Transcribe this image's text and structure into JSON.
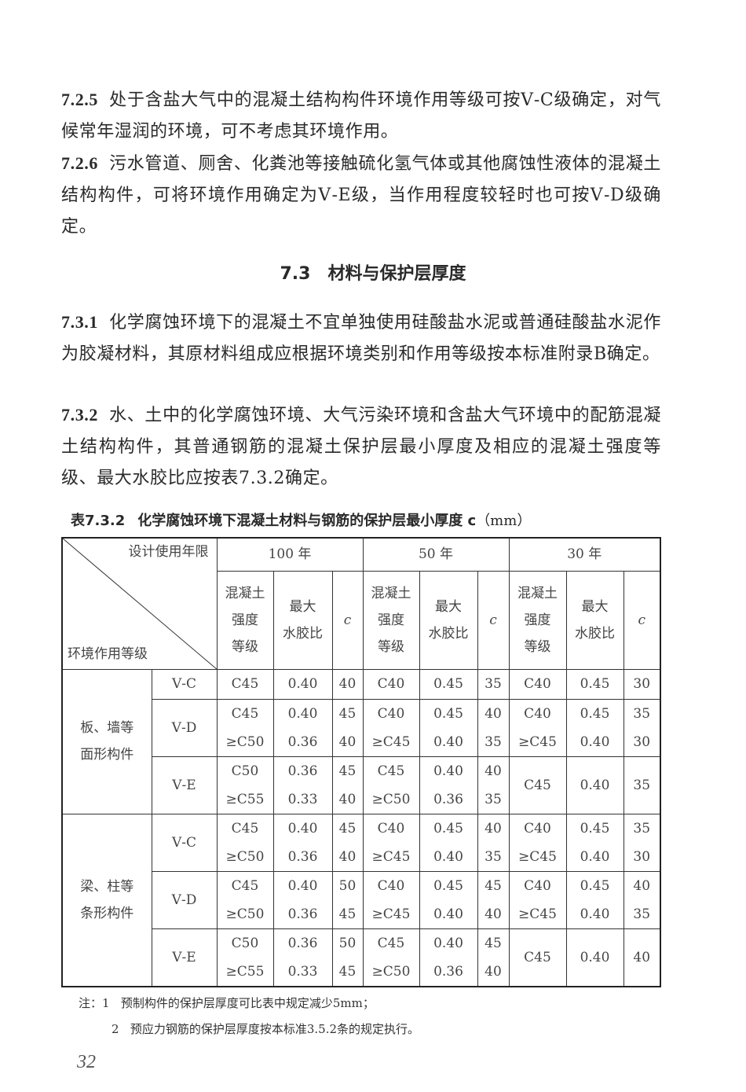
{
  "clauses": [
    {
      "num": "7.2.5",
      "text": "处于含盐大气中的混凝土结构构件环境作用等级可按Ⅴ-C级确定，对气候常年湿润的环境，可不考虑其环境作用。"
    },
    {
      "num": "7.2.6",
      "text": "污水管道、厕舍、化粪池等接触硫化氢气体或其他腐蚀性液体的混凝土结构构件，可将环境作用确定为Ⅴ-E级，当作用程度较轻时也可按Ⅴ-D级确定。"
    },
    {
      "num": "7.3.1",
      "text": "化学腐蚀环境下的混凝土不宜单独使用硅酸盐水泥或普通硅酸盐水泥作为胶凝材料，其原材料组成应根据环境类别和作用等级按本标准附录B确定。"
    },
    {
      "num": "7.3.2",
      "text": "水、土中的化学腐蚀环境、大气污染环境和含盐大气环境中的配筋混凝土结构构件，其普通钢筋的混凝土保护层最小厚度及相应的混凝土强度等级、最大水胶比应按表7.3.2确定。"
    }
  ],
  "section": {
    "num": "7.3",
    "title": "材料与保护层厚度"
  },
  "table": {
    "caption_num": "表7.3.2",
    "caption": "化学腐蚀环境下混凝土材料与钢筋的保护层最小厚度 c",
    "unit": "（mm）",
    "corner_top": "设计使用年限",
    "corner_bottom": "环境作用等级",
    "periods": [
      "100 年",
      "50 年",
      "30 年"
    ],
    "subheaders": {
      "grade": "混凝土强度等级",
      "wb": "最大水胶比",
      "c": "c"
    },
    "groups": [
      {
        "label": "板、墙等面形构件",
        "rows": [
          {
            "level": "Ⅴ-C",
            "cells": [
              {
                "g": [
                  "C45"
                ],
                "w": [
                  "0.40"
                ],
                "c": [
                  "40"
                ]
              },
              {
                "g": [
                  "C40"
                ],
                "w": [
                  "0.45"
                ],
                "c": [
                  "35"
                ]
              },
              {
                "g": [
                  "C40"
                ],
                "w": [
                  "0.45"
                ],
                "c": [
                  "30"
                ]
              }
            ]
          },
          {
            "level": "Ⅴ-D",
            "cells": [
              {
                "g": [
                  "C45",
                  "≥C50"
                ],
                "w": [
                  "0.40",
                  "0.36"
                ],
                "c": [
                  "45",
                  "40"
                ]
              },
              {
                "g": [
                  "C40",
                  "≥C45"
                ],
                "w": [
                  "0.45",
                  "0.40"
                ],
                "c": [
                  "40",
                  "35"
                ]
              },
              {
                "g": [
                  "C40",
                  "≥C45"
                ],
                "w": [
                  "0.45",
                  "0.40"
                ],
                "c": [
                  "35",
                  "30"
                ]
              }
            ]
          },
          {
            "level": "Ⅴ-E",
            "cells": [
              {
                "g": [
                  "C50",
                  "≥C55"
                ],
                "w": [
                  "0.36",
                  "0.33"
                ],
                "c": [
                  "45",
                  "40"
                ]
              },
              {
                "g": [
                  "C45",
                  "≥C50"
                ],
                "w": [
                  "0.40",
                  "0.36"
                ],
                "c": [
                  "40",
                  "35"
                ]
              },
              {
                "g": [
                  "C45"
                ],
                "w": [
                  "0.40"
                ],
                "c": [
                  "35"
                ]
              }
            ]
          }
        ]
      },
      {
        "label": "梁、柱等条形构件",
        "rows": [
          {
            "level": "Ⅴ-C",
            "cells": [
              {
                "g": [
                  "C45",
                  "≥C50"
                ],
                "w": [
                  "0.40",
                  "0.36"
                ],
                "c": [
                  "45",
                  "40"
                ]
              },
              {
                "g": [
                  "C40",
                  "≥C45"
                ],
                "w": [
                  "0.45",
                  "0.40"
                ],
                "c": [
                  "40",
                  "35"
                ]
              },
              {
                "g": [
                  "C40",
                  "≥C45"
                ],
                "w": [
                  "0.45",
                  "0.40"
                ],
                "c": [
                  "35",
                  "30"
                ]
              }
            ]
          },
          {
            "level": "Ⅴ-D",
            "cells": [
              {
                "g": [
                  "C45",
                  "≥C50"
                ],
                "w": [
                  "0.40",
                  "0.36"
                ],
                "c": [
                  "50",
                  "45"
                ]
              },
              {
                "g": [
                  "C40",
                  "≥C45"
                ],
                "w": [
                  "0.45",
                  "0.40"
                ],
                "c": [
                  "45",
                  "40"
                ]
              },
              {
                "g": [
                  "C40",
                  "≥C45"
                ],
                "w": [
                  "0.45",
                  "0.40"
                ],
                "c": [
                  "40",
                  "35"
                ]
              }
            ]
          },
          {
            "level": "Ⅴ-E",
            "cells": [
              {
                "g": [
                  "C50",
                  "≥C55"
                ],
                "w": [
                  "0.36",
                  "0.33"
                ],
                "c": [
                  "50",
                  "45"
                ]
              },
              {
                "g": [
                  "C45",
                  "≥C50"
                ],
                "w": [
                  "0.40",
                  "0.36"
                ],
                "c": [
                  "45",
                  "40"
                ]
              },
              {
                "g": [
                  "C45"
                ],
                "w": [
                  "0.40"
                ],
                "c": [
                  "40"
                ]
              }
            ]
          }
        ]
      }
    ]
  },
  "notes": {
    "prefix": "注：1",
    "n1": "预制构件的保护层厚度可比表中规定减少5mm；",
    "n2_num": "2",
    "n2": "预应力钢筋的保护层厚度按本标准3.5.2条的规定执行。"
  },
  "page_number": "32"
}
